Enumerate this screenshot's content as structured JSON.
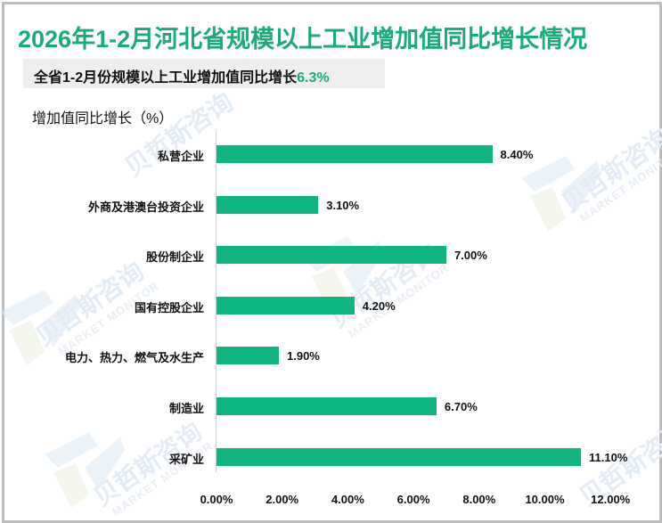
{
  "title": "2026年1-2月河北省规模以上工业增加值同比增长情况",
  "subtitle": {
    "text": "全省1-2月份规模以上工业增加值同比增长",
    "highlight": "6.3%"
  },
  "watermark": {
    "brand_cn": "贝哲斯咨询",
    "brand_en": "MARKET MONITOR"
  },
  "colors": {
    "title": "#19ab78",
    "bar": "#10b582",
    "highlight": "#19ab78",
    "subtitle_bg": "#eeeeee",
    "border": "#bdbdbd"
  },
  "chart_data": {
    "type": "bar",
    "orientation": "horizontal",
    "title": "2026年1-2月河北省规模以上工业增加值同比增长情况",
    "subtitle": "全省1-2月份规模以上工业增加值同比增长6.3%",
    "ylabel": "增加值同比增长（%）",
    "xlabel": "",
    "categories": [
      "私营企业",
      "外商及港澳台投资企业",
      "股份制企业",
      "国有控股企业",
      "电力、热力、燃气及水生产",
      "制造业",
      "采矿业"
    ],
    "values": [
      8.4,
      3.1,
      7.0,
      4.2,
      1.9,
      6.7,
      11.1
    ],
    "value_labels": [
      "8.40%",
      "3.10%",
      "7.00%",
      "4.20%",
      "1.90%",
      "6.70%",
      "11.10%"
    ],
    "xlim": [
      0,
      12
    ],
    "x_ticks": [
      "0.00%",
      "2.00%",
      "4.00%",
      "6.00%",
      "8.00%",
      "10.00%",
      "12.00%"
    ],
    "grid": false,
    "legend": null
  }
}
